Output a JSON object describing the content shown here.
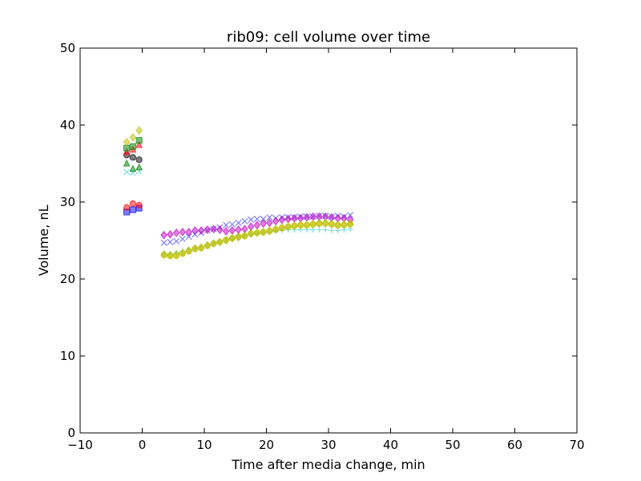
{
  "chart_data": {
    "type": "scatter",
    "title": "rib09: cell volume over time",
    "xlabel": "Time after media change, min",
    "ylabel": "Volume, nL",
    "xlim": [
      -10,
      70
    ],
    "ylim": [
      0,
      50
    ],
    "x_ticks": [
      -10,
      0,
      10,
      20,
      30,
      40,
      50,
      60,
      70
    ],
    "y_ticks": [
      0,
      10,
      20,
      30,
      40,
      50
    ],
    "x_tick_labels": [
      "−10",
      "0",
      "10",
      "20",
      "30",
      "40",
      "50",
      "60",
      "70"
    ],
    "y_tick_labels": [
      "0",
      "10",
      "20",
      "30",
      "40",
      "50"
    ],
    "grid": false,
    "legend": "none",
    "series": [
      {
        "marker": "square",
        "color": "#0000ff",
        "points": [
          [
            -2.5,
            28.7
          ],
          [
            -1.5,
            29.0
          ],
          [
            -0.5,
            29.2
          ]
        ]
      },
      {
        "marker": "circle",
        "color": "#ff0000",
        "points": [
          [
            -2.5,
            29.3
          ],
          [
            -1.5,
            29.8
          ],
          [
            -0.5,
            29.6
          ]
        ]
      },
      {
        "marker": "x",
        "color": "#00bfbf",
        "points": [
          [
            -2.5,
            33.9
          ],
          [
            -1.5,
            33.8
          ],
          [
            -0.5,
            34.0
          ]
        ]
      },
      {
        "marker": "triangle",
        "color": "#008000",
        "points": [
          [
            -2.5,
            35.0
          ],
          [
            -1.5,
            34.3
          ],
          [
            -0.5,
            34.5
          ]
        ]
      },
      {
        "marker": "circle",
        "color": "#000000",
        "points": [
          [
            -2.5,
            36.1
          ],
          [
            -1.5,
            35.8
          ],
          [
            -0.5,
            35.5
          ]
        ]
      },
      {
        "marker": "triangle",
        "color": "#ff0000",
        "points": [
          [
            -2.5,
            36.5
          ],
          [
            -1.5,
            36.8
          ],
          [
            -0.5,
            37.4
          ]
        ]
      },
      {
        "marker": "square",
        "color": "#008000",
        "points": [
          [
            -2.5,
            37.0
          ],
          [
            -1.5,
            37.2
          ],
          [
            -0.5,
            38.0
          ]
        ]
      },
      {
        "marker": "diamond",
        "color": "#bfbf00",
        "points": [
          [
            -2.5,
            37.8
          ],
          [
            -1.5,
            38.4
          ],
          [
            -0.5,
            39.3
          ]
        ]
      },
      {
        "marker": "x",
        "color": "#0000ff",
        "points": [
          [
            3.5,
            24.7
          ],
          [
            4.5,
            24.8
          ],
          [
            5.5,
            24.9
          ],
          [
            6.5,
            25.2
          ],
          [
            7.5,
            25.5
          ],
          [
            8.5,
            25.8
          ],
          [
            9.5,
            26.0
          ],
          [
            10.5,
            26.3
          ],
          [
            11.5,
            26.5
          ],
          [
            12.5,
            26.7
          ],
          [
            13.5,
            27.0
          ],
          [
            14.5,
            27.1
          ],
          [
            15.5,
            27.3
          ],
          [
            16.5,
            27.5
          ],
          [
            17.5,
            27.7
          ],
          [
            18.5,
            27.8
          ],
          [
            19.5,
            27.8
          ],
          [
            20.5,
            28.0
          ],
          [
            21.5,
            27.9
          ],
          [
            22.5,
            28.0
          ],
          [
            23.5,
            28.0
          ],
          [
            24.5,
            28.0
          ],
          [
            25.5,
            28.1
          ],
          [
            26.5,
            28.1
          ],
          [
            27.5,
            28.1
          ],
          [
            28.5,
            28.2
          ],
          [
            29.5,
            28.2
          ],
          [
            30.5,
            28.1
          ],
          [
            31.5,
            28.2
          ],
          [
            32.5,
            28.1
          ],
          [
            33.5,
            28.3
          ]
        ]
      },
      {
        "marker": "diamond",
        "color": "#bf00bf",
        "points": [
          [
            3.5,
            25.7
          ],
          [
            4.5,
            25.8
          ],
          [
            5.5,
            26.0
          ],
          [
            6.5,
            26.1
          ],
          [
            7.5,
            26.1
          ],
          [
            8.5,
            26.3
          ],
          [
            9.5,
            26.3
          ],
          [
            10.5,
            26.4
          ],
          [
            11.5,
            26.5
          ],
          [
            12.5,
            26.4
          ],
          [
            13.5,
            26.2
          ],
          [
            14.5,
            26.3
          ],
          [
            15.5,
            26.4
          ],
          [
            16.5,
            26.5
          ],
          [
            17.5,
            26.8
          ],
          [
            18.5,
            27.0
          ],
          [
            19.5,
            27.2
          ],
          [
            20.5,
            27.3
          ],
          [
            21.5,
            27.5
          ],
          [
            22.5,
            27.7
          ],
          [
            23.5,
            27.8
          ],
          [
            24.5,
            27.9
          ],
          [
            25.5,
            27.9
          ],
          [
            26.5,
            28.0
          ],
          [
            27.5,
            28.1
          ],
          [
            28.5,
            28.1
          ],
          [
            29.5,
            28.1
          ],
          [
            30.5,
            28.0
          ],
          [
            31.5,
            27.9
          ],
          [
            32.5,
            27.9
          ],
          [
            33.5,
            27.7
          ]
        ]
      },
      {
        "marker": "plus",
        "color": "#00bfbf",
        "points": [
          [
            3.5,
            23.3
          ],
          [
            4.5,
            23.3
          ],
          [
            5.5,
            23.4
          ],
          [
            6.5,
            23.6
          ],
          [
            7.5,
            23.8
          ],
          [
            8.5,
            24.0
          ],
          [
            9.5,
            24.2
          ],
          [
            10.5,
            24.4
          ],
          [
            11.5,
            24.6
          ],
          [
            12.5,
            24.8
          ],
          [
            13.5,
            25.0
          ],
          [
            14.5,
            25.2
          ],
          [
            15.5,
            25.4
          ],
          [
            16.5,
            25.6
          ],
          [
            17.5,
            25.8
          ],
          [
            18.5,
            25.9
          ],
          [
            19.5,
            26.0
          ],
          [
            20.5,
            26.1
          ],
          [
            21.5,
            26.2
          ],
          [
            22.5,
            26.3
          ],
          [
            23.5,
            26.4
          ],
          [
            24.5,
            26.4
          ],
          [
            25.5,
            26.4
          ],
          [
            26.5,
            26.4
          ],
          [
            27.5,
            26.4
          ],
          [
            28.5,
            26.4
          ],
          [
            29.5,
            26.4
          ],
          [
            30.5,
            26.3
          ],
          [
            31.5,
            26.3
          ],
          [
            32.5,
            26.4
          ],
          [
            33.5,
            26.5
          ]
        ]
      },
      {
        "marker": "circle",
        "color": "#bfbf00",
        "points": [
          [
            3.5,
            23.1
          ],
          [
            4.5,
            23.0
          ],
          [
            5.5,
            23.0
          ],
          [
            6.5,
            23.3
          ],
          [
            7.5,
            23.6
          ],
          [
            8.5,
            23.9
          ],
          [
            9.5,
            24.0
          ],
          [
            10.5,
            24.3
          ],
          [
            11.5,
            24.6
          ],
          [
            12.5,
            24.8
          ],
          [
            13.5,
            25.1
          ],
          [
            14.5,
            25.3
          ],
          [
            15.5,
            25.5
          ],
          [
            16.5,
            25.6
          ],
          [
            17.5,
            25.9
          ],
          [
            18.5,
            26.0
          ],
          [
            19.5,
            26.1
          ],
          [
            20.5,
            26.2
          ],
          [
            21.5,
            26.4
          ],
          [
            22.5,
            26.6
          ],
          [
            23.5,
            26.8
          ],
          [
            24.5,
            26.9
          ],
          [
            25.5,
            27.0
          ],
          [
            26.5,
            27.0
          ],
          [
            27.5,
            27.1
          ],
          [
            28.5,
            27.2
          ],
          [
            29.5,
            27.2
          ],
          [
            30.5,
            27.1
          ],
          [
            31.5,
            27.0
          ],
          [
            32.5,
            27.0
          ],
          [
            33.5,
            27.1
          ]
        ]
      },
      {
        "marker": "diamond",
        "color": "#bfbf00",
        "points": [
          [
            3.5,
            23.2
          ],
          [
            4.5,
            23.1
          ],
          [
            5.5,
            23.2
          ],
          [
            6.5,
            23.4
          ],
          [
            7.5,
            23.7
          ],
          [
            8.5,
            24.0
          ],
          [
            9.5,
            24.1
          ],
          [
            10.5,
            24.4
          ],
          [
            11.5,
            24.6
          ],
          [
            12.5,
            24.8
          ],
          [
            13.5,
            25.0
          ],
          [
            14.5,
            25.3
          ],
          [
            15.5,
            25.4
          ],
          [
            16.5,
            25.6
          ],
          [
            17.5,
            25.9
          ],
          [
            18.5,
            26.0
          ],
          [
            19.5,
            26.1
          ],
          [
            20.5,
            26.3
          ],
          [
            21.5,
            26.5
          ],
          [
            22.5,
            26.7
          ],
          [
            23.5,
            26.8
          ],
          [
            24.5,
            26.9
          ],
          [
            25.5,
            27.0
          ],
          [
            26.5,
            27.0
          ],
          [
            27.5,
            27.1
          ],
          [
            28.5,
            27.2
          ],
          [
            29.5,
            27.3
          ],
          [
            30.5,
            27.2
          ],
          [
            31.5,
            27.0
          ],
          [
            32.5,
            27.1
          ],
          [
            33.5,
            27.2
          ]
        ]
      }
    ]
  }
}
